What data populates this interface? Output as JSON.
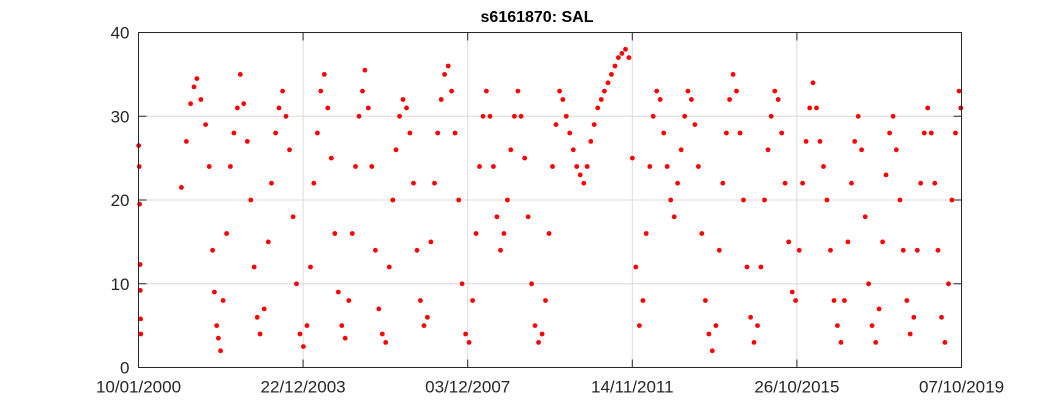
{
  "chart_data": {
    "type": "scatter",
    "title": "s6161870: SAL",
    "xlabel": "",
    "ylabel": "",
    "x_range": [
      "2000-01-10",
      "2019-10-07"
    ],
    "ylim": [
      0,
      40
    ],
    "y_ticks": [
      "0",
      "10",
      "20",
      "30",
      "40"
    ],
    "x_ticks": [
      {
        "date": "2000-01-10",
        "label": "10/01/2000"
      },
      {
        "date": "2003-12-22",
        "label": "22/12/2003"
      },
      {
        "date": "2007-12-03",
        "label": "03/12/2007"
      },
      {
        "date": "2011-11-14",
        "label": "14/11/2011"
      },
      {
        "date": "2015-10-26",
        "label": "26/10/2015"
      },
      {
        "date": "2019-10-07",
        "label": "07/10/2019"
      }
    ],
    "grid": true,
    "marker_color": "#ff0000",
    "series": [
      {
        "points": [
          [
            "2000-01-12",
            26.5
          ],
          [
            "2000-01-16",
            24.0
          ],
          [
            "2000-01-20",
            19.5
          ],
          [
            "2000-01-24",
            12.3
          ],
          [
            "2000-01-26",
            9.2
          ],
          [
            "2000-01-28",
            5.8
          ],
          [
            "2000-01-30",
            4.0
          ],
          [
            "2001-01-20",
            21.5
          ],
          [
            "2001-03-05",
            27.0
          ],
          [
            "2001-04-10",
            31.5
          ],
          [
            "2001-05-10",
            33.5
          ],
          [
            "2001-06-05",
            34.5
          ],
          [
            "2001-07-10",
            32.0
          ],
          [
            "2001-08-20",
            29.0
          ],
          [
            "2001-09-20",
            24.0
          ],
          [
            "2001-10-20",
            14.0
          ],
          [
            "2001-11-05",
            9.0
          ],
          [
            "2001-11-25",
            5.0
          ],
          [
            "2001-12-10",
            3.5
          ],
          [
            "2001-12-28",
            2.0
          ],
          [
            "2002-01-20",
            8.0
          ],
          [
            "2002-02-20",
            16.0
          ],
          [
            "2002-03-25",
            24.0
          ],
          [
            "2002-04-25",
            28.0
          ],
          [
            "2002-05-25",
            31.0
          ],
          [
            "2002-06-20",
            35.0
          ],
          [
            "2002-07-20",
            31.5
          ],
          [
            "2002-08-20",
            27.0
          ],
          [
            "2002-09-20",
            20.0
          ],
          [
            "2002-10-20",
            12.0
          ],
          [
            "2002-11-15",
            6.0
          ],
          [
            "2002-12-10",
            4.0
          ],
          [
            "2003-01-15",
            7.0
          ],
          [
            "2003-02-20",
            15.0
          ],
          [
            "2003-03-20",
            22.0
          ],
          [
            "2003-04-25",
            28.0
          ],
          [
            "2003-05-25",
            31.0
          ],
          [
            "2003-06-25",
            33.0
          ],
          [
            "2003-07-25",
            30.0
          ],
          [
            "2003-08-25",
            26.0
          ],
          [
            "2003-09-25",
            18.0
          ],
          [
            "2003-10-25",
            10.0
          ],
          [
            "2003-11-25",
            4.0
          ],
          [
            "2003-12-25",
            2.5
          ],
          [
            "2004-01-25",
            5.0
          ],
          [
            "2004-02-25",
            12.0
          ],
          [
            "2004-03-25",
            22.0
          ],
          [
            "2004-04-25",
            28.0
          ],
          [
            "2004-05-25",
            33.0
          ],
          [
            "2004-06-25",
            35.0
          ],
          [
            "2004-07-25",
            31.0
          ],
          [
            "2004-08-25",
            25.0
          ],
          [
            "2004-09-25",
            16.0
          ],
          [
            "2004-10-25",
            9.0
          ],
          [
            "2004-11-25",
            5.0
          ],
          [
            "2004-12-25",
            3.5
          ],
          [
            "2005-01-25",
            8.0
          ],
          [
            "2005-02-25",
            16.0
          ],
          [
            "2005-03-25",
            24.0
          ],
          [
            "2005-04-25",
            30.0
          ],
          [
            "2005-05-25",
            33.0
          ],
          [
            "2005-06-15",
            35.5
          ],
          [
            "2005-07-15",
            31.0
          ],
          [
            "2005-08-15",
            24.0
          ],
          [
            "2005-09-15",
            14.0
          ],
          [
            "2005-10-15",
            7.0
          ],
          [
            "2005-11-15",
            4.0
          ],
          [
            "2005-12-15",
            3.0
          ],
          [
            "2006-01-15",
            12.0
          ],
          [
            "2006-02-15",
            20.0
          ],
          [
            "2006-03-15",
            26.0
          ],
          [
            "2006-04-15",
            30.0
          ],
          [
            "2006-05-15",
            32.0
          ],
          [
            "2006-06-15",
            31.0
          ],
          [
            "2006-07-15",
            28.0
          ],
          [
            "2006-08-15",
            22.0
          ],
          [
            "2006-09-15",
            14.0
          ],
          [
            "2006-10-15",
            8.0
          ],
          [
            "2006-11-15",
            5.0
          ],
          [
            "2006-12-15",
            6.0
          ],
          [
            "2007-01-15",
            15.0
          ],
          [
            "2007-02-15",
            22.0
          ],
          [
            "2007-03-15",
            28.0
          ],
          [
            "2007-04-15",
            32.0
          ],
          [
            "2007-05-15",
            35.0
          ],
          [
            "2007-06-15",
            36.0
          ],
          [
            "2007-07-15",
            33.0
          ],
          [
            "2007-08-15",
            28.0
          ],
          [
            "2007-09-15",
            20.0
          ],
          [
            "2007-10-15",
            10.0
          ],
          [
            "2007-11-15",
            4.0
          ],
          [
            "2007-12-15",
            3.0
          ],
          [
            "2008-01-15",
            8.0
          ],
          [
            "2008-02-15",
            16.0
          ],
          [
            "2008-03-15",
            24.0
          ],
          [
            "2008-04-15",
            30.0
          ],
          [
            "2008-05-15",
            33.0
          ],
          [
            "2008-06-15",
            30.0
          ],
          [
            "2008-07-15",
            24.0
          ],
          [
            "2008-08-15",
            18.0
          ],
          [
            "2008-09-15",
            14.0
          ],
          [
            "2008-10-15",
            16.0
          ],
          [
            "2008-11-15",
            20.0
          ],
          [
            "2008-12-15",
            26.0
          ],
          [
            "2009-01-15",
            30.0
          ],
          [
            "2009-02-15",
            33.0
          ],
          [
            "2009-03-15",
            30.0
          ],
          [
            "2009-04-15",
            25.0
          ],
          [
            "2009-05-15",
            18.0
          ],
          [
            "2009-06-15",
            10.0
          ],
          [
            "2009-07-15",
            5.0
          ],
          [
            "2009-08-15",
            3.0
          ],
          [
            "2009-09-15",
            4.0
          ],
          [
            "2009-10-15",
            8.0
          ],
          [
            "2009-11-15",
            16.0
          ],
          [
            "2009-12-15",
            24.0
          ],
          [
            "2010-01-15",
            29.0
          ],
          [
            "2010-02-15",
            33.0
          ],
          [
            "2010-03-15",
            32.0
          ],
          [
            "2010-04-15",
            30.0
          ],
          [
            "2010-05-15",
            28.0
          ],
          [
            "2010-06-15",
            26.0
          ],
          [
            "2010-07-15",
            24.0
          ],
          [
            "2010-08-15",
            23.0
          ],
          [
            "2010-09-15",
            22.0
          ],
          [
            "2010-10-15",
            24.0
          ],
          [
            "2010-11-15",
            27.0
          ],
          [
            "2010-12-15",
            29.0
          ],
          [
            "2011-01-15",
            31.0
          ],
          [
            "2011-02-15",
            32.0
          ],
          [
            "2011-03-15",
            33.0
          ],
          [
            "2011-04-15",
            34.0
          ],
          [
            "2011-05-15",
            35.0
          ],
          [
            "2011-06-15",
            36.0
          ],
          [
            "2011-07-15",
            37.0
          ],
          [
            "2011-08-15",
            37.5
          ],
          [
            "2011-09-15",
            38.0
          ],
          [
            "2011-10-15",
            37.0
          ],
          [
            "2011-11-15",
            25.0
          ],
          [
            "2011-12-15",
            12.0
          ],
          [
            "2012-01-15",
            5.0
          ],
          [
            "2012-02-15",
            8.0
          ],
          [
            "2012-03-15",
            16.0
          ],
          [
            "2012-04-15",
            24.0
          ],
          [
            "2012-05-15",
            30.0
          ],
          [
            "2012-06-15",
            33.0
          ],
          [
            "2012-07-15",
            32.0
          ],
          [
            "2012-08-15",
            28.0
          ],
          [
            "2012-09-15",
            24.0
          ],
          [
            "2012-10-15",
            20.0
          ],
          [
            "2012-11-15",
            18.0
          ],
          [
            "2012-12-15",
            22.0
          ],
          [
            "2013-01-15",
            26.0
          ],
          [
            "2013-02-15",
            30.0
          ],
          [
            "2013-03-15",
            33.0
          ],
          [
            "2013-04-15",
            32.0
          ],
          [
            "2013-05-15",
            29.0
          ],
          [
            "2013-06-15",
            24.0
          ],
          [
            "2013-07-15",
            16.0
          ],
          [
            "2013-08-15",
            8.0
          ],
          [
            "2013-09-15",
            4.0
          ],
          [
            "2013-10-15",
            2.0
          ],
          [
            "2013-11-15",
            5.0
          ],
          [
            "2013-12-15",
            14.0
          ],
          [
            "2014-01-15",
            22.0
          ],
          [
            "2014-02-15",
            28.0
          ],
          [
            "2014-03-15",
            32.0
          ],
          [
            "2014-04-15",
            35.0
          ],
          [
            "2014-05-15",
            33.0
          ],
          [
            "2014-06-15",
            28.0
          ],
          [
            "2014-07-15",
            20.0
          ],
          [
            "2014-08-15",
            12.0
          ],
          [
            "2014-09-15",
            6.0
          ],
          [
            "2014-10-15",
            3.0
          ],
          [
            "2014-11-15",
            5.0
          ],
          [
            "2014-12-15",
            12.0
          ],
          [
            "2015-01-15",
            20.0
          ],
          [
            "2015-02-15",
            26.0
          ],
          [
            "2015-03-15",
            30.0
          ],
          [
            "2015-04-15",
            33.0
          ],
          [
            "2015-05-15",
            32.0
          ],
          [
            "2015-06-15",
            28.0
          ],
          [
            "2015-07-15",
            22.0
          ],
          [
            "2015-08-15",
            15.0
          ],
          [
            "2015-09-15",
            9.0
          ],
          [
            "2015-10-15",
            8.0
          ],
          [
            "2015-11-15",
            14.0
          ],
          [
            "2015-12-15",
            22.0
          ],
          [
            "2016-01-15",
            27.0
          ],
          [
            "2016-02-15",
            31.0
          ],
          [
            "2016-03-15",
            34.0
          ],
          [
            "2016-04-15",
            31.0
          ],
          [
            "2016-05-15",
            27.0
          ],
          [
            "2016-06-15",
            24.0
          ],
          [
            "2016-07-15",
            20.0
          ],
          [
            "2016-08-15",
            14.0
          ],
          [
            "2016-09-15",
            8.0
          ],
          [
            "2016-10-15",
            5.0
          ],
          [
            "2016-11-15",
            3.0
          ],
          [
            "2016-12-15",
            8.0
          ],
          [
            "2017-01-15",
            15.0
          ],
          [
            "2017-02-15",
            22.0
          ],
          [
            "2017-03-15",
            27.0
          ],
          [
            "2017-04-15",
            30.0
          ],
          [
            "2017-05-15",
            26.0
          ],
          [
            "2017-06-15",
            18.0
          ],
          [
            "2017-07-15",
            10.0
          ],
          [
            "2017-08-15",
            5.0
          ],
          [
            "2017-09-15",
            3.0
          ],
          [
            "2017-10-15",
            7.0
          ],
          [
            "2017-11-15",
            15.0
          ],
          [
            "2017-12-15",
            23.0
          ],
          [
            "2018-01-15",
            28.0
          ],
          [
            "2018-02-15",
            30.0
          ],
          [
            "2018-03-15",
            26.0
          ],
          [
            "2018-04-15",
            20.0
          ],
          [
            "2018-05-15",
            14.0
          ],
          [
            "2018-06-15",
            8.0
          ],
          [
            "2018-07-15",
            4.0
          ],
          [
            "2018-08-15",
            6.0
          ],
          [
            "2018-09-15",
            14.0
          ],
          [
            "2018-10-15",
            22.0
          ],
          [
            "2018-11-15",
            28.0
          ],
          [
            "2018-12-15",
            31.0
          ],
          [
            "2019-01-15",
            28.0
          ],
          [
            "2019-02-15",
            22.0
          ],
          [
            "2019-03-15",
            14.0
          ],
          [
            "2019-04-15",
            6.0
          ],
          [
            "2019-05-15",
            3.0
          ],
          [
            "2019-06-15",
            10.0
          ],
          [
            "2019-07-15",
            20.0
          ],
          [
            "2019-08-15",
            28.0
          ],
          [
            "2019-09-15",
            33.0
          ],
          [
            "2019-10-01",
            31.0
          ]
        ]
      }
    ]
  }
}
